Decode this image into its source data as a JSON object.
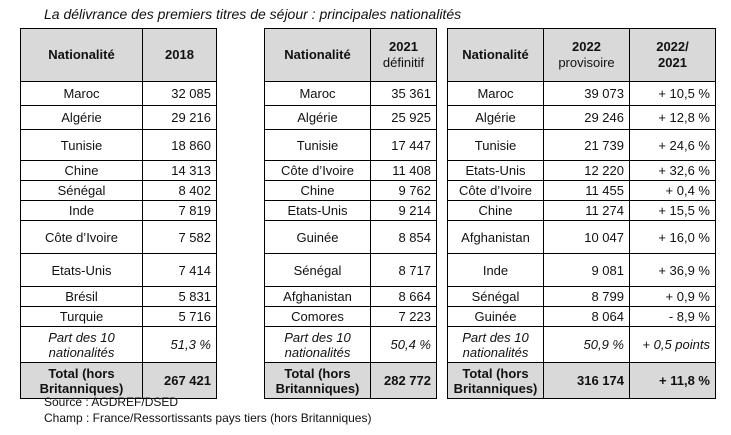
{
  "title": "La délivrance des premiers titres de séjour : principales nationalités",
  "tables": [
    {
      "headers": [
        {
          "lines": [
            "Nationalité"
          ]
        },
        {
          "lines": [
            "2018"
          ]
        }
      ],
      "rows": [
        [
          "Maroc",
          "32 085"
        ],
        [
          "Algérie",
          "29 216"
        ],
        [
          "Tunisie",
          "18 860"
        ],
        [
          "Chine",
          "14 313"
        ],
        [
          "Sénégal",
          "8 402"
        ],
        [
          "Inde",
          "7 819"
        ],
        [
          "Côte d’Ivoire",
          "7 582"
        ],
        [
          "Etats-Unis",
          "7 414"
        ],
        [
          "Brésil",
          "5 831"
        ],
        [
          "Turquie",
          "5 716"
        ]
      ],
      "share": [
        "Part des 10 nationalités",
        "51,3 %"
      ],
      "total": [
        "Total (hors Britanniques)",
        "267 421"
      ]
    },
    {
      "headers": [
        {
          "lines": [
            "Nationalité"
          ]
        },
        {
          "lines": [
            "2021",
            "définitif"
          ]
        }
      ],
      "rows": [
        [
          "Maroc",
          "35 361"
        ],
        [
          "Algérie",
          "25 925"
        ],
        [
          "Tunisie",
          "17 447"
        ],
        [
          "Côte d’Ivoire",
          "11 408"
        ],
        [
          "Chine",
          "9 762"
        ],
        [
          "Etats-Unis",
          "9 214"
        ],
        [
          "Guinée",
          "8 854"
        ],
        [
          "Sénégal",
          "8 717"
        ],
        [
          "Afghanistan",
          "8 664"
        ],
        [
          "Comores",
          "7 223"
        ]
      ],
      "share": [
        "Part des 10 nationalités",
        "50,4 %"
      ],
      "total": [
        "Total (hors Britanniques)",
        "282 772"
      ]
    },
    {
      "headers": [
        {
          "lines": [
            "Nationalité"
          ]
        },
        {
          "lines": [
            "2022",
            "provisoire"
          ]
        },
        {
          "lines": [
            "2022/",
            "2021"
          ]
        }
      ],
      "rows": [
        [
          "Maroc",
          "39 073",
          "+ 10,5 %"
        ],
        [
          "Algérie",
          "29 246",
          "+ 12,8 %"
        ],
        [
          "Tunisie",
          "21 739",
          "+ 24,6 %"
        ],
        [
          "Etats-Unis",
          "12 220",
          "+ 32,6 %"
        ],
        [
          "Côte d’Ivoire",
          "11 455",
          "+ 0,4 %"
        ],
        [
          "Chine",
          "11 274",
          "+ 15,5 %"
        ],
        [
          "Afghanistan",
          "10 047",
          "+ 16,0 %"
        ],
        [
          "Inde",
          "9 081",
          "+ 36,9 %"
        ],
        [
          "Sénégal",
          "8 799",
          "+ 0,9 %"
        ],
        [
          "Guinée",
          "8 064",
          "- 8,9 %"
        ]
      ],
      "share": [
        "Part des 10 nationalités",
        "50,9 %",
        "+ 0,5 points"
      ],
      "total": [
        "Total (hors Britanniques)",
        "316 174",
        "+ 11,8 %"
      ]
    }
  ],
  "source": "Source : AGDREF/DSED",
  "scope": "Champ : France/Ressortissants pays tiers (hors Britanniques)"
}
